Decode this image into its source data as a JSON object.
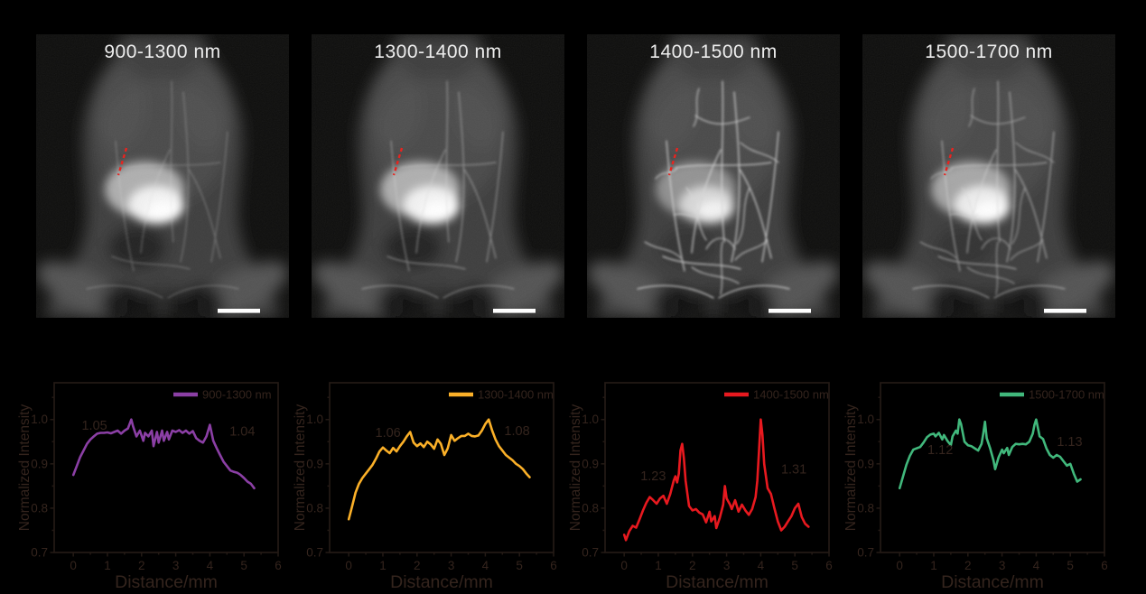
{
  "page": {
    "background": "#000000",
    "image_background": "#0d0d0c"
  },
  "colors": {
    "roi_marker_red": "#e8241f",
    "scale_bar": "#ffffff",
    "title_text": "#ededed",
    "axis_line": "#241a15",
    "axis_text": "#34241d"
  },
  "images": [
    {
      "label": "900-1300 nm",
      "vessel_detail": "low",
      "vessel_opacity": 0.32,
      "blob_opacity": 1.0,
      "dense": false,
      "scale_bar": true,
      "roi_marker": "red-dashed-line"
    },
    {
      "label": "1300-1400 nm",
      "vessel_detail": "medium",
      "vessel_opacity": 0.48,
      "blob_opacity": 1.0,
      "dense": false,
      "scale_bar": true,
      "roi_marker": "red-dashed-line"
    },
    {
      "label": "1400-1500 nm",
      "vessel_detail": "high",
      "vessel_opacity": 0.92,
      "blob_opacity": 0.72,
      "dense": true,
      "scale_bar": true,
      "roi_marker": "red-dashed-line"
    },
    {
      "label": "1500-1700 nm",
      "vessel_detail": "medium-high",
      "vessel_opacity": 0.62,
      "blob_opacity": 0.92,
      "dense": true,
      "scale_bar": true,
      "roi_marker": "red-dashed-line"
    }
  ],
  "chart_data": [
    {
      "type": "line",
      "legend": "900-1300 nm",
      "color": "#8b3fa5",
      "xlabel": "Distance/mm",
      "ylabel": "Normalized Intensity",
      "xlim": [
        -0.56,
        6
      ],
      "ylim": [
        0.7,
        1.083
      ],
      "xticks": [
        "0",
        "1",
        "2",
        "3",
        "4",
        "5",
        "6"
      ],
      "yticks": [
        "0.7",
        "0.8",
        "0.9",
        "1.0"
      ],
      "grid": false,
      "legend_position": "top-right",
      "annotations": [
        {
          "text": "1.05",
          "x": 0.62,
          "y": 0.977
        },
        {
          "text": "1.04",
          "x": 4.95,
          "y": 0.964
        }
      ],
      "x": [
        0,
        0.1,
        0.2,
        0.3,
        0.4,
        0.5,
        0.6,
        0.7,
        0.8,
        0.9,
        1.0,
        1.1,
        1.2,
        1.3,
        1.4,
        1.5,
        1.6,
        1.7,
        1.75,
        1.85,
        1.95,
        2.05,
        2.1,
        2.2,
        2.3,
        2.35,
        2.45,
        2.5,
        2.6,
        2.65,
        2.75,
        2.8,
        2.9,
        3.0,
        3.1,
        3.2,
        3.3,
        3.4,
        3.5,
        3.6,
        3.7,
        3.8,
        3.9,
        4.0,
        4.1,
        4.2,
        4.3,
        4.4,
        4.5,
        4.6,
        4.7,
        4.8,
        4.9,
        5.0,
        5.1,
        5.2,
        5.3
      ],
      "y": [
        0.875,
        0.895,
        0.915,
        0.93,
        0.945,
        0.955,
        0.962,
        0.968,
        0.97,
        0.97,
        0.971,
        0.969,
        0.972,
        0.975,
        0.968,
        0.975,
        0.98,
        1.0,
        0.985,
        0.962,
        0.975,
        0.952,
        0.97,
        0.962,
        0.975,
        0.94,
        0.972,
        0.948,
        0.975,
        0.952,
        0.972,
        0.955,
        0.975,
        0.972,
        0.976,
        0.97,
        0.975,
        0.968,
        0.974,
        0.958,
        0.952,
        0.948,
        0.962,
        0.988,
        0.952,
        0.935,
        0.92,
        0.905,
        0.895,
        0.885,
        0.882,
        0.88,
        0.875,
        0.868,
        0.86,
        0.855,
        0.845
      ]
    },
    {
      "type": "line",
      "legend": "1300-1400 nm",
      "color": "#fbb028",
      "xlabel": "Distance/mm",
      "ylabel": "Normalized Intensity",
      "xlim": [
        -0.56,
        6
      ],
      "ylim": [
        0.7,
        1.083
      ],
      "xticks": [
        "0",
        "1",
        "2",
        "3",
        "4",
        "5",
        "6"
      ],
      "yticks": [
        "0.7",
        "0.8",
        "0.9",
        "1.0"
      ],
      "grid": false,
      "legend_position": "top-right",
      "annotations": [
        {
          "text": "1.06",
          "x": 1.15,
          "y": 0.961
        },
        {
          "text": "1.08",
          "x": 4.93,
          "y": 0.965
        }
      ],
      "x": [
        0,
        0.1,
        0.2,
        0.3,
        0.4,
        0.5,
        0.6,
        0.7,
        0.8,
        0.9,
        1.0,
        1.1,
        1.2,
        1.3,
        1.4,
        1.5,
        1.6,
        1.7,
        1.8,
        1.9,
        2.0,
        2.1,
        2.2,
        2.3,
        2.4,
        2.5,
        2.6,
        2.7,
        2.8,
        2.9,
        3.0,
        3.1,
        3.2,
        3.3,
        3.4,
        3.5,
        3.6,
        3.7,
        3.8,
        3.9,
        4.0,
        4.1,
        4.2,
        4.3,
        4.4,
        4.5,
        4.6,
        4.7,
        4.8,
        4.9,
        5.0,
        5.1,
        5.2,
        5.3
      ],
      "y": [
        0.775,
        0.805,
        0.835,
        0.855,
        0.868,
        0.878,
        0.888,
        0.898,
        0.912,
        0.928,
        0.937,
        0.93,
        0.924,
        0.936,
        0.928,
        0.94,
        0.95,
        0.962,
        0.972,
        0.948,
        0.94,
        0.946,
        0.938,
        0.95,
        0.944,
        0.934,
        0.955,
        0.945,
        0.92,
        0.935,
        0.965,
        0.952,
        0.958,
        0.963,
        0.963,
        0.968,
        0.963,
        0.962,
        0.964,
        0.975,
        0.99,
        1.0,
        0.975,
        0.955,
        0.94,
        0.93,
        0.92,
        0.914,
        0.908,
        0.9,
        0.895,
        0.888,
        0.878,
        0.87
      ]
    },
    {
      "type": "line",
      "legend": "1400-1500 nm",
      "color": "#e8191f",
      "xlabel": "Distance/mm",
      "ylabel": "Normalized Intensity",
      "xlim": [
        -0.56,
        6
      ],
      "ylim": [
        0.7,
        1.083
      ],
      "xticks": [
        "0",
        "1",
        "2",
        "3",
        "4",
        "5",
        "6"
      ],
      "yticks": [
        "0.7",
        "0.8",
        "0.9",
        "1.0"
      ],
      "grid": false,
      "legend_position": "top-right",
      "annotations": [
        {
          "text": "1.23",
          "x": 0.85,
          "y": 0.863
        },
        {
          "text": "1.31",
          "x": 4.97,
          "y": 0.878
        }
      ],
      "x": [
        0,
        0.05,
        0.15,
        0.25,
        0.35,
        0.45,
        0.55,
        0.65,
        0.75,
        0.85,
        0.95,
        1.05,
        1.15,
        1.25,
        1.35,
        1.45,
        1.5,
        1.55,
        1.6,
        1.65,
        1.7,
        1.75,
        1.8,
        1.9,
        2.0,
        2.1,
        2.2,
        2.3,
        2.4,
        2.5,
        2.55,
        2.65,
        2.7,
        2.8,
        2.9,
        2.95,
        3.0,
        3.1,
        3.15,
        3.25,
        3.35,
        3.45,
        3.55,
        3.65,
        3.75,
        3.85,
        3.9,
        3.95,
        4.0,
        4.05,
        4.1,
        4.2,
        4.3,
        4.4,
        4.5,
        4.6,
        4.7,
        4.8,
        4.9,
        5.0,
        5.1,
        5.2,
        5.3,
        5.4
      ],
      "y": [
        0.74,
        0.728,
        0.748,
        0.76,
        0.756,
        0.775,
        0.795,
        0.812,
        0.825,
        0.818,
        0.81,
        0.822,
        0.828,
        0.81,
        0.832,
        0.862,
        0.872,
        0.858,
        0.878,
        0.93,
        0.945,
        0.912,
        0.862,
        0.805,
        0.795,
        0.798,
        0.79,
        0.786,
        0.768,
        0.792,
        0.77,
        0.782,
        0.755,
        0.778,
        0.808,
        0.85,
        0.822,
        0.808,
        0.798,
        0.818,
        0.792,
        0.808,
        0.795,
        0.785,
        0.798,
        0.825,
        0.862,
        0.93,
        1.0,
        0.965,
        0.9,
        0.845,
        0.832,
        0.8,
        0.77,
        0.75,
        0.758,
        0.77,
        0.782,
        0.8,
        0.81,
        0.78,
        0.765,
        0.758
      ]
    },
    {
      "type": "line",
      "legend": "1500-1700 nm",
      "color": "#41b87c",
      "xlabel": "Distance/mm",
      "ylabel": "Normalized Intensity",
      "xlim": [
        -0.56,
        6
      ],
      "ylim": [
        0.7,
        1.083
      ],
      "xticks": [
        "0",
        "1",
        "2",
        "3",
        "4",
        "5",
        "6"
      ],
      "yticks": [
        "0.7",
        "0.8",
        "0.9",
        "1.0"
      ],
      "grid": false,
      "legend_position": "top-right",
      "annotations": [
        {
          "text": "1.12",
          "x": 1.19,
          "y": 0.922
        },
        {
          "text": "1.13",
          "x": 4.98,
          "y": 0.94
        }
      ],
      "x": [
        0,
        0.1,
        0.2,
        0.3,
        0.4,
        0.5,
        0.6,
        0.7,
        0.8,
        0.9,
        1.0,
        1.05,
        1.15,
        1.25,
        1.3,
        1.4,
        1.5,
        1.55,
        1.65,
        1.7,
        1.75,
        1.8,
        1.9,
        2.0,
        2.1,
        2.2,
        2.3,
        2.4,
        2.45,
        2.5,
        2.55,
        2.65,
        2.75,
        2.8,
        2.9,
        3.0,
        3.05,
        3.15,
        3.2,
        3.3,
        3.4,
        3.5,
        3.6,
        3.7,
        3.8,
        3.9,
        3.95,
        4.0,
        4.1,
        4.2,
        4.3,
        4.4,
        4.5,
        4.6,
        4.7,
        4.8,
        4.9,
        5.0,
        5.1,
        5.2,
        5.3
      ],
      "y": [
        0.845,
        0.872,
        0.898,
        0.918,
        0.932,
        0.935,
        0.938,
        0.948,
        0.96,
        0.966,
        0.968,
        0.962,
        0.97,
        0.955,
        0.965,
        0.952,
        0.942,
        0.962,
        0.975,
        0.968,
        1.0,
        0.99,
        0.95,
        0.942,
        0.94,
        0.935,
        0.93,
        0.945,
        0.968,
        0.995,
        0.958,
        0.935,
        0.908,
        0.888,
        0.915,
        0.932,
        0.924,
        0.936,
        0.92,
        0.938,
        0.945,
        0.944,
        0.945,
        0.944,
        0.95,
        0.968,
        0.988,
        1.0,
        0.962,
        0.956,
        0.935,
        0.92,
        0.914,
        0.92,
        0.916,
        0.906,
        0.896,
        0.9,
        0.878,
        0.86,
        0.865
      ]
    }
  ]
}
